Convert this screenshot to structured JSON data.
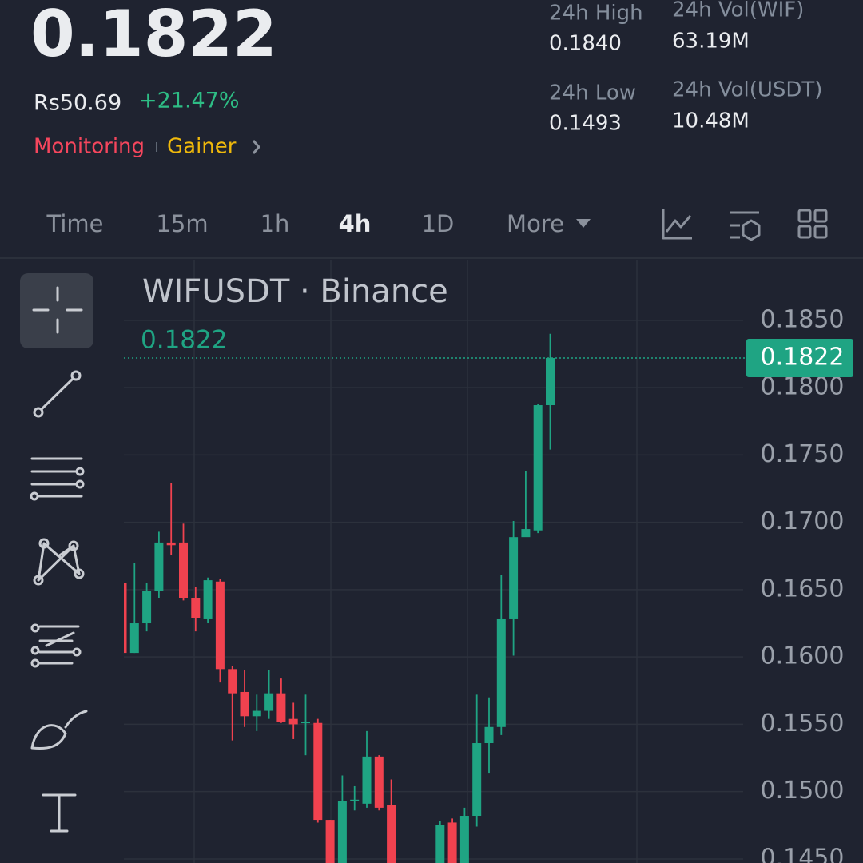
{
  "header": {
    "price": "0.1822",
    "fiat_price": "Rs50.69",
    "change": "+21.47%",
    "tag_monitoring": "Monitoring",
    "tag_gainer": "Gainer",
    "stats": [
      {
        "label": "24h High",
        "value": "0.1840"
      },
      {
        "label": "24h Vol(WIF)",
        "value": "63.19M"
      },
      {
        "label": "24h Low",
        "value": "0.1493"
      },
      {
        "label": "24h Vol(USDT)",
        "value": "10.48M"
      }
    ]
  },
  "tabs": [
    "Time",
    "15m",
    "1h",
    "4h",
    "1D",
    "More"
  ],
  "chart_data": {
    "type": "candlestick",
    "title": "WIFUSDT · Binance",
    "last_price": 0.1822,
    "up_color": "#1fa483",
    "down_color": "#f0424f",
    "grid": true,
    "ylim": [
      0.1447,
      0.1895
    ],
    "yticks": [
      {
        "value": 0.145,
        "label": "0.1450"
      },
      {
        "value": 0.15,
        "label": "0.1500"
      },
      {
        "value": 0.155,
        "label": "0.1550"
      },
      {
        "value": 0.16,
        "label": "0.1600"
      },
      {
        "value": 0.165,
        "label": "0.1650"
      },
      {
        "value": 0.17,
        "label": "0.1700"
      },
      {
        "value": 0.175,
        "label": "0.1750"
      },
      {
        "value": 0.18,
        "label": "0.1800"
      },
      {
        "value": 0.185,
        "label": "0.1850"
      }
    ],
    "open": [
      0.1655,
      0.1603,
      0.1625,
      0.1649,
      0.1685,
      0.1685,
      0.1644,
      0.1628,
      0.1656,
      0.1591,
      0.1574,
      0.1556,
      0.156,
      0.1573,
      0.1554,
      0.1551,
      0.1551,
      0.1479,
      0.144,
      0.1493,
      0.1491,
      0.1526,
      0.149,
      null,
      null,
      null,
      0.144,
      0.1477,
      0.144,
      0.1482,
      0.1536,
      0.1548,
      0.1628,
      0.1689,
      0.1694,
      0.1787
    ],
    "high": [
      0.1655,
      0.167,
      0.1655,
      0.1693,
      0.1729,
      0.1699,
      0.1652,
      0.1659,
      0.1658,
      0.1593,
      0.159,
      0.1572,
      0.159,
      0.1584,
      0.1566,
      0.1572,
      0.1554,
      0.1479,
      0.1512,
      0.1504,
      0.1545,
      0.1527,
      0.1509,
      null,
      null,
      null,
      0.1478,
      0.148,
      0.1488,
      0.1572,
      0.157,
      0.1661,
      0.1701,
      0.1738,
      0.1788,
      0.184
    ],
    "low": [
      0.1603,
      0.1603,
      0.1619,
      0.1644,
      0.1676,
      0.1642,
      0.1619,
      0.1625,
      0.1581,
      0.1538,
      0.1548,
      0.1545,
      0.1554,
      0.1551,
      0.1539,
      0.1527,
      0.1477,
      0.143,
      0.1435,
      0.1486,
      0.1488,
      0.1486,
      0.143,
      null,
      null,
      null,
      0.1435,
      0.1435,
      0.1435,
      0.1474,
      0.1514,
      0.1542,
      0.1601,
      0.169,
      0.1692,
      0.1754
    ],
    "close": [
      0.1603,
      0.1625,
      0.1649,
      0.1685,
      0.1683,
      0.1644,
      0.1629,
      0.1657,
      0.1591,
      0.1573,
      0.1556,
      0.156,
      0.1573,
      0.1552,
      0.155,
      0.1552,
      0.1479,
      0.144,
      0.1493,
      0.1494,
      0.1526,
      0.1488,
      0.144,
      null,
      null,
      null,
      0.1475,
      0.144,
      0.1482,
      0.1536,
      0.1548,
      0.1628,
      0.1689,
      0.1695,
      0.1787,
      0.1822
    ]
  }
}
